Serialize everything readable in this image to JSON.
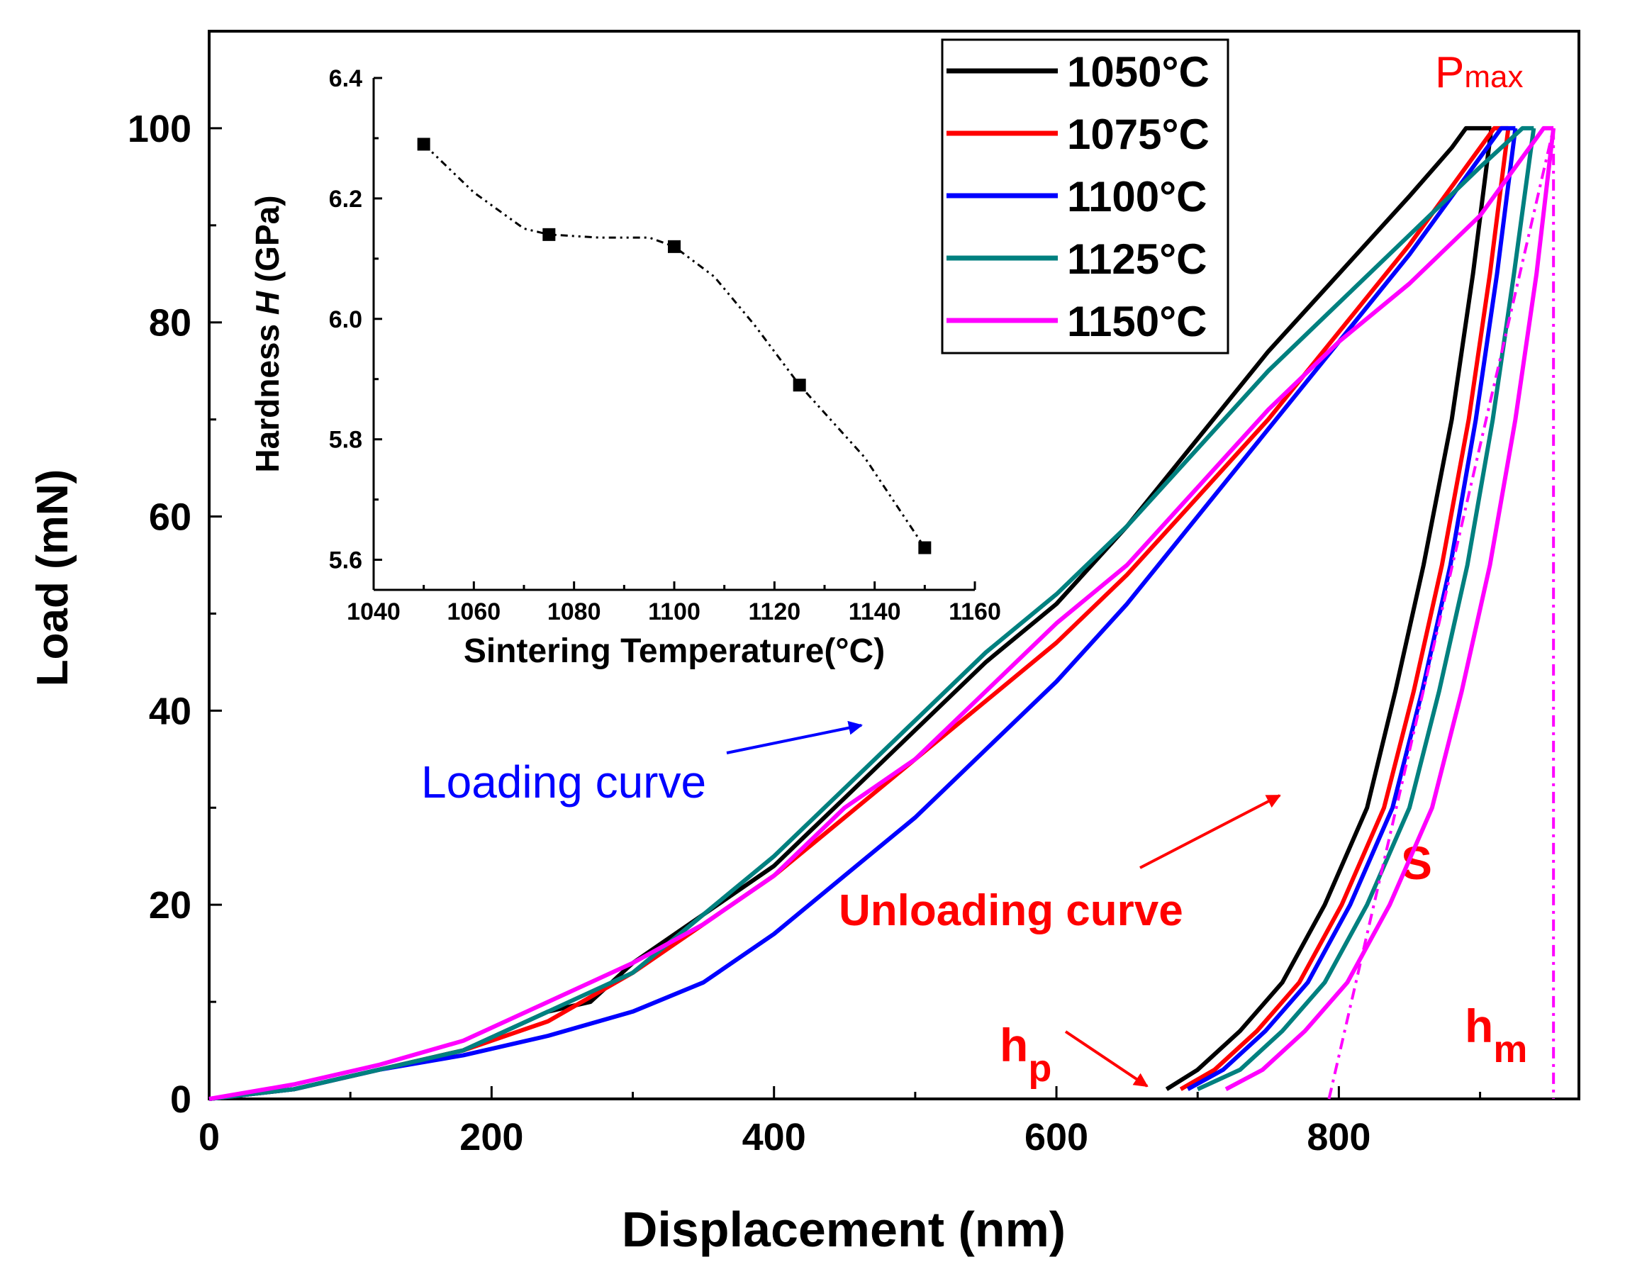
{
  "chart_data": {
    "type": "line",
    "xlabel": "Displacement (nm)",
    "ylabel": "Load (mN)",
    "xlim": [
      0,
      970
    ],
    "ylim": [
      0,
      110
    ],
    "xticks": [
      "0",
      "200",
      "400",
      "600",
      "800"
    ],
    "yticks": [
      "0",
      "20",
      "40",
      "60",
      "80",
      "100"
    ],
    "legend_position": "top-right",
    "series": [
      {
        "name": "1050°C",
        "color": "#000000",
        "loading": [
          [
            0,
            0
          ],
          [
            60,
            1
          ],
          [
            120,
            3
          ],
          [
            180,
            5
          ],
          [
            240,
            9
          ],
          [
            270,
            10
          ],
          [
            300,
            14
          ],
          [
            350,
            19
          ],
          [
            400,
            24
          ],
          [
            450,
            31
          ],
          [
            500,
            38
          ],
          [
            550,
            45
          ],
          [
            600,
            51
          ],
          [
            650,
            59
          ],
          [
            700,
            68
          ],
          [
            750,
            77
          ],
          [
            800,
            85
          ],
          [
            850,
            93
          ],
          [
            880,
            98
          ],
          [
            890,
            100
          ],
          [
            908,
            100
          ]
        ],
        "unloading": [
          [
            908,
            100
          ],
          [
            895,
            85
          ],
          [
            880,
            70
          ],
          [
            860,
            55
          ],
          [
            840,
            42
          ],
          [
            820,
            30
          ],
          [
            790,
            20
          ],
          [
            760,
            12
          ],
          [
            730,
            7
          ],
          [
            700,
            3
          ],
          [
            678,
            1
          ]
        ]
      },
      {
        "name": "1075°C",
        "color": "#ff0000",
        "loading": [
          [
            0,
            0
          ],
          [
            60,
            1
          ],
          [
            120,
            3
          ],
          [
            180,
            5
          ],
          [
            240,
            8
          ],
          [
            300,
            13
          ],
          [
            350,
            18
          ],
          [
            400,
            23
          ],
          [
            450,
            29
          ],
          [
            500,
            35
          ],
          [
            550,
            41
          ],
          [
            600,
            47
          ],
          [
            650,
            54
          ],
          [
            700,
            62
          ],
          [
            750,
            70
          ],
          [
            800,
            79
          ],
          [
            850,
            88
          ],
          [
            890,
            96
          ],
          [
            910,
            100
          ],
          [
            920,
            100
          ]
        ],
        "unloading": [
          [
            920,
            100
          ],
          [
            907,
            85
          ],
          [
            892,
            70
          ],
          [
            873,
            55
          ],
          [
            853,
            42
          ],
          [
            832,
            30
          ],
          [
            802,
            20
          ],
          [
            772,
            12
          ],
          [
            742,
            7
          ],
          [
            712,
            3
          ],
          [
            688,
            1
          ]
        ]
      },
      {
        "name": "1100°C",
        "color": "#0000ff",
        "loading": [
          [
            0,
            0
          ],
          [
            60,
            1
          ],
          [
            120,
            3
          ],
          [
            180,
            4.5
          ],
          [
            240,
            6.5
          ],
          [
            300,
            9
          ],
          [
            350,
            12
          ],
          [
            400,
            17
          ],
          [
            450,
            23
          ],
          [
            500,
            29
          ],
          [
            550,
            36
          ],
          [
            600,
            43
          ],
          [
            650,
            51
          ],
          [
            700,
            60
          ],
          [
            750,
            69
          ],
          [
            800,
            78
          ],
          [
            850,
            87
          ],
          [
            890,
            95
          ],
          [
            915,
            100
          ],
          [
            925,
            100
          ]
        ],
        "unloading": [
          [
            925,
            100
          ],
          [
            912,
            85
          ],
          [
            897,
            70
          ],
          [
            879,
            55
          ],
          [
            859,
            42
          ],
          [
            838,
            30
          ],
          [
            808,
            20
          ],
          [
            778,
            12
          ],
          [
            748,
            7
          ],
          [
            718,
            3
          ],
          [
            693,
            1
          ]
        ]
      },
      {
        "name": "1125°C",
        "color": "#00807f",
        "loading": [
          [
            0,
            0
          ],
          [
            60,
            1
          ],
          [
            120,
            3
          ],
          [
            180,
            5
          ],
          [
            240,
            9
          ],
          [
            300,
            13
          ],
          [
            350,
            19
          ],
          [
            400,
            25
          ],
          [
            450,
            32
          ],
          [
            500,
            39
          ],
          [
            550,
            46
          ],
          [
            600,
            52
          ],
          [
            650,
            59
          ],
          [
            700,
            67
          ],
          [
            750,
            75
          ],
          [
            800,
            82
          ],
          [
            850,
            89
          ],
          [
            900,
            96
          ],
          [
            930,
            100
          ],
          [
            938,
            100
          ]
        ],
        "unloading": [
          [
            938,
            100
          ],
          [
            924,
            85
          ],
          [
            909,
            70
          ],
          [
            891,
            55
          ],
          [
            871,
            42
          ],
          [
            850,
            30
          ],
          [
            820,
            20
          ],
          [
            790,
            12
          ],
          [
            760,
            7
          ],
          [
            730,
            3
          ],
          [
            700,
            1
          ]
        ]
      },
      {
        "name": "1150°C",
        "color": "#ff00ff",
        "loading": [
          [
            0,
            0
          ],
          [
            60,
            1.5
          ],
          [
            120,
            3.5
          ],
          [
            180,
            6
          ],
          [
            240,
            10
          ],
          [
            300,
            14
          ],
          [
            350,
            18
          ],
          [
            400,
            23
          ],
          [
            450,
            30
          ],
          [
            500,
            35
          ],
          [
            550,
            42
          ],
          [
            600,
            49
          ],
          [
            650,
            55
          ],
          [
            700,
            63
          ],
          [
            750,
            71
          ],
          [
            800,
            78
          ],
          [
            850,
            84
          ],
          [
            900,
            91
          ],
          [
            930,
            97
          ],
          [
            945,
            100
          ],
          [
            952,
            100
          ]
        ],
        "unloading": [
          [
            952,
            100
          ],
          [
            940,
            85
          ],
          [
            925,
            70
          ],
          [
            907,
            55
          ],
          [
            887,
            42
          ],
          [
            866,
            30
          ],
          [
            836,
            20
          ],
          [
            806,
            12
          ],
          [
            776,
            7
          ],
          [
            746,
            3
          ],
          [
            720,
            1
          ]
        ]
      }
    ],
    "tangent_S": [
      [
        793,
        0
      ],
      [
        952,
        100
      ]
    ],
    "hm_line_x": 952,
    "annotations": {
      "pmax_p": "P",
      "pmax_sub": "max",
      "s_label": "S",
      "hm_h": "h",
      "hm_sub": "m",
      "hp_h": "h",
      "hp_sub": "p",
      "loading_curve": "Loading curve",
      "unloading_curve": "Unloading curve"
    },
    "inset": {
      "type": "line",
      "xlabel": "Sintering Temperature(°C)",
      "ylabel_a": "Hardness ",
      "ylabel_b": "H",
      "ylabel_c": " (GPa)",
      "xlim": [
        1040,
        1160
      ],
      "ylim": [
        5.55,
        6.4
      ],
      "xticks": [
        "1040",
        "1060",
        "1080",
        "1100",
        "1120",
        "1140",
        "1160"
      ],
      "yticks": [
        "5.6",
        "5.8",
        "6.0",
        "6.2",
        "6.4"
      ],
      "x": [
        1050,
        1075,
        1100,
        1125,
        1150
      ],
      "y": [
        6.29,
        6.14,
        6.12,
        5.89,
        5.62
      ],
      "curve": [
        [
          1050,
          6.29
        ],
        [
          1060,
          6.21
        ],
        [
          1070,
          6.15
        ],
        [
          1075,
          6.14
        ],
        [
          1085,
          6.135
        ],
        [
          1095,
          6.135
        ],
        [
          1100,
          6.12
        ],
        [
          1108,
          6.07
        ],
        [
          1116,
          5.99
        ],
        [
          1125,
          5.89
        ],
        [
          1138,
          5.77
        ],
        [
          1150,
          5.62
        ]
      ]
    }
  }
}
